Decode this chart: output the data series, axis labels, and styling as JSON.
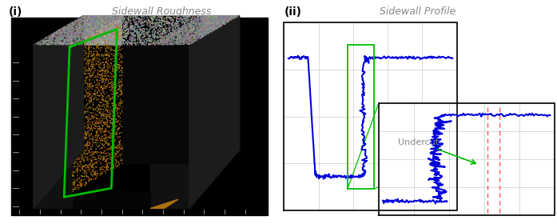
{
  "title_left": "Sidewall Roughness",
  "title_right": "Sidewall Profile",
  "label_i": "(i)",
  "label_ii": "(ii)",
  "undercut_text": "Undercut",
  "bg_color": "#ffffff",
  "green_color": "#00bb00",
  "blue_color": "#0000dd",
  "red_dashed_color": "#ff6666",
  "title_color": "#888888",
  "label_color": "#000000",
  "undercut_color": "#888888",
  "box_bg": "#f5f5f5",
  "grid_color": "#cccccc"
}
